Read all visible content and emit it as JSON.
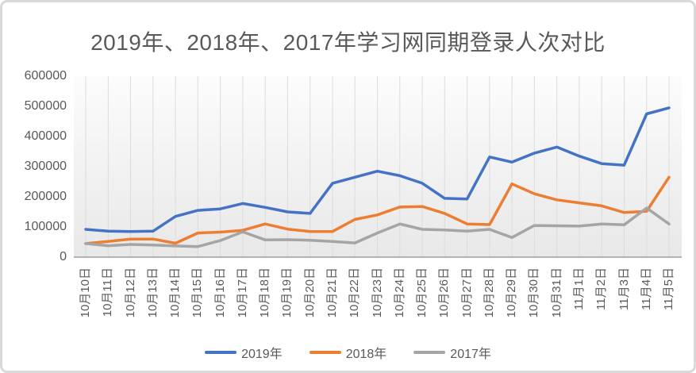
{
  "chart_data": {
    "type": "line",
    "title": "2019年、2018年、2017年学习网同期登录人次对比",
    "categories": [
      "10月10日",
      "10月11日",
      "10月12日",
      "10月13日",
      "10月14日",
      "10月15日",
      "10月16日",
      "10月17日",
      "10月18日",
      "10月19日",
      "10月20日",
      "10月21日",
      "10月22日",
      "10月23日",
      "10月24日",
      "10月25日",
      "10月26日",
      "10月27日",
      "10月28日",
      "10月29日",
      "10月30日",
      "10月31日",
      "11月1日",
      "11月2日",
      "11月3日",
      "11月4日",
      "11月5日"
    ],
    "series": [
      {
        "name": "2019年",
        "color": "#4472C4",
        "values": [
          92000,
          86000,
          85000,
          86000,
          135000,
          155000,
          160000,
          178000,
          165000,
          150000,
          145000,
          245000,
          265000,
          285000,
          270000,
          245000,
          195000,
          193000,
          332000,
          315000,
          345000,
          365000,
          335000,
          310000,
          305000,
          475000,
          495000
        ]
      },
      {
        "name": "2018年",
        "color": "#ED7D31",
        "values": [
          45000,
          52000,
          60000,
          60000,
          46000,
          80000,
          83000,
          89000,
          110000,
          93000,
          85000,
          85000,
          125000,
          140000,
          166000,
          168000,
          145000,
          110000,
          108000,
          243000,
          210000,
          190000,
          180000,
          170000,
          148000,
          152000,
          265000
        ]
      },
      {
        "name": "2017年",
        "color": "#A5A5A5",
        "values": [
          45000,
          38000,
          42000,
          40000,
          37000,
          35000,
          55000,
          84000,
          57000,
          58000,
          56000,
          52000,
          47000,
          80000,
          110000,
          92000,
          90000,
          86000,
          92000,
          65000,
          105000,
          104000,
          103000,
          110000,
          107000,
          163000,
          110000
        ]
      }
    ],
    "ylim": [
      0,
      600000
    ],
    "ytick_step": 100000,
    "ytick_labels": [
      "0",
      "100000",
      "200000",
      "300000",
      "400000",
      "500000",
      "600000"
    ],
    "grid": "vertical-only",
    "legend_position": "bottom"
  },
  "styles": {
    "grid_color": "#DCDCDC",
    "axis_color": "#9E9E9E",
    "text_color": "#595959",
    "frame_border_color": "#D9D9D9",
    "plot_gradient_top": "#FCFCFC",
    "plot_gradient_mid": "#F1F1F1",
    "plot_gradient_bottom": "#E8E8E8"
  }
}
